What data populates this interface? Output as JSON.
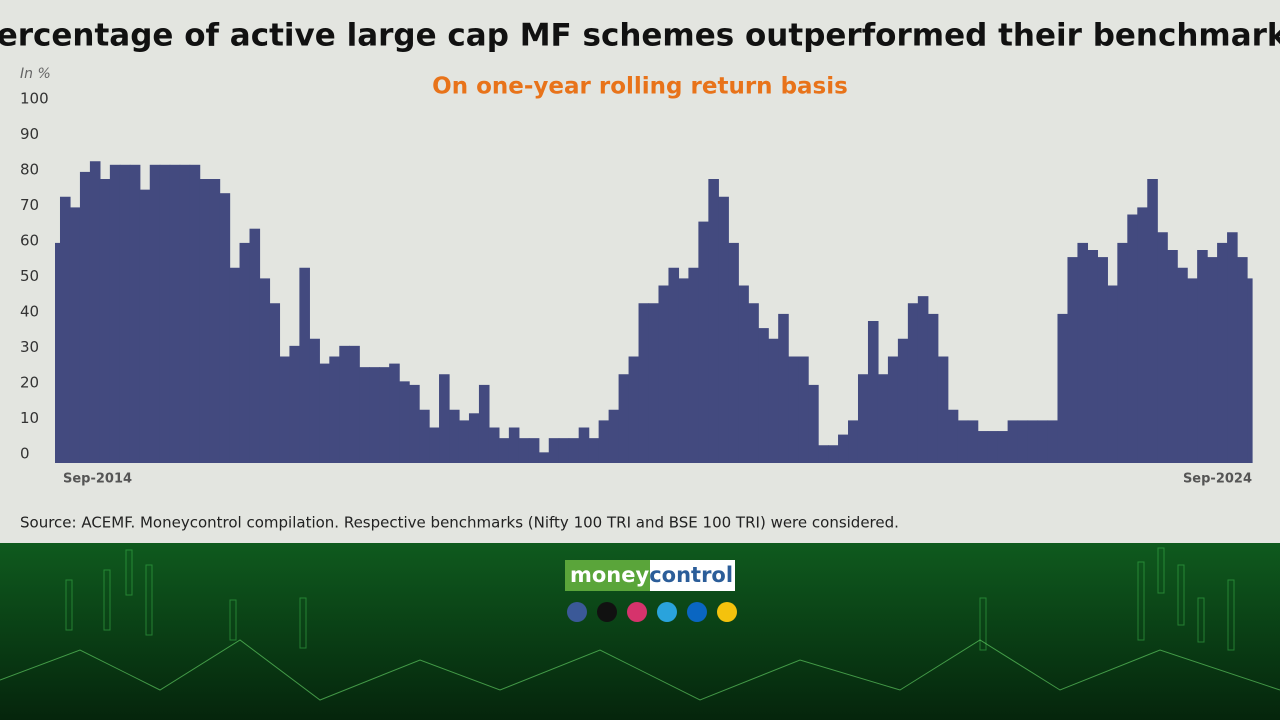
{
  "chart_data": {
    "type": "area",
    "title": "Percentage of active large cap MF schemes outperformed their benchmarks",
    "subtitle": "On one-year rolling return basis",
    "y_label": "In %",
    "source": "Source: ACEMF. Moneycontrol compilation. Respective benchmarks (Nifty 100 TRI and BSE 100 TRI) were considered.",
    "color": "#434a7f",
    "categories": [
      "Sep-2014",
      null,
      null,
      null,
      null,
      null,
      null,
      null,
      null,
      null,
      null,
      null,
      null,
      null,
      null,
      null,
      null,
      null,
      null,
      null,
      null,
      null,
      null,
      null,
      null,
      null,
      null,
      null,
      null,
      null,
      null,
      null,
      null,
      null,
      null,
      null,
      null,
      null,
      null,
      null,
      null,
      null,
      null,
      null,
      null,
      null,
      null,
      null,
      null,
      null,
      null,
      null,
      null,
      null,
      null,
      null,
      null,
      null,
      null,
      null,
      null,
      null,
      null,
      null,
      null,
      null,
      null,
      null,
      null,
      null,
      null,
      null,
      null,
      null,
      null,
      null,
      null,
      null,
      null,
      null,
      null,
      null,
      null,
      null,
      null,
      null,
      null,
      null,
      null,
      null,
      null,
      null,
      null,
      null,
      null,
      null,
      null,
      null,
      null,
      null,
      null,
      null,
      null,
      null,
      null,
      null,
      null,
      null,
      null,
      null,
      null,
      null,
      null,
      null,
      null,
      null,
      null,
      null,
      null,
      null,
      "Sep-2024"
    ],
    "values": [
      62,
      75,
      72,
      82,
      85,
      80,
      84,
      84,
      84,
      77,
      84,
      84,
      84,
      84,
      84,
      80,
      80,
      76,
      55,
      62,
      66,
      52,
      45,
      30,
      33,
      55,
      35,
      28,
      30,
      33,
      33,
      27,
      27,
      27,
      28,
      23,
      22,
      15,
      10,
      25,
      15,
      12,
      14,
      22,
      10,
      7,
      10,
      7,
      7,
      3,
      7,
      7,
      7,
      10,
      7,
      12,
      15,
      25,
      30,
      45,
      45,
      50,
      55,
      52,
      55,
      68,
      80,
      75,
      62,
      50,
      45,
      38,
      35,
      42,
      30,
      30,
      22,
      5,
      5,
      8,
      12,
      25,
      40,
      25,
      30,
      35,
      45,
      47,
      42,
      30,
      15,
      12,
      12,
      9,
      9,
      9,
      12,
      12,
      12,
      12,
      12,
      42,
      58,
      62,
      60,
      58,
      50,
      62,
      70,
      72,
      80,
      65,
      60,
      55,
      52,
      60,
      58,
      62,
      65,
      58,
      52
    ],
    "ylim": [
      0,
      100
    ],
    "yticks": [
      0,
      10,
      20,
      30,
      40,
      50,
      60,
      70,
      80,
      90,
      100
    ],
    "grid": false
  },
  "footer": {
    "brand": [
      "money",
      "control"
    ]
  }
}
